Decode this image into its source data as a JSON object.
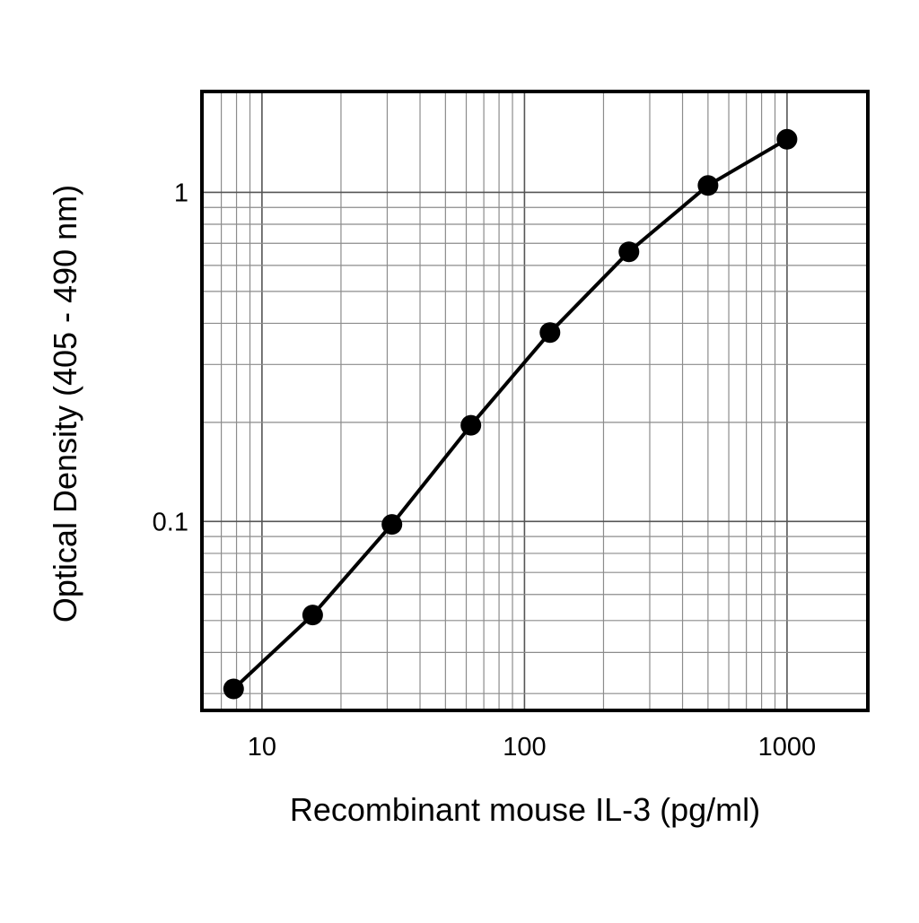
{
  "chart_data": {
    "type": "line",
    "title": "",
    "xlabel": "Recombinant mouse IL-3 (pg/ml)",
    "ylabel": "Optical Density (405 - 490 nm)",
    "x_scale": "log",
    "y_scale": "log",
    "xlim": [
      6,
      2000
    ],
    "ylim": [
      0.027,
      2.0
    ],
    "x_ticks": [
      {
        "value": 10,
        "label": "10"
      },
      {
        "value": 100,
        "label": "100"
      },
      {
        "value": 1000,
        "label": "1000"
      }
    ],
    "y_ticks": [
      {
        "value": 0.1,
        "label": "0.1"
      },
      {
        "value": 1,
        "label": "1"
      }
    ],
    "grid": true,
    "legend": "none",
    "series": [
      {
        "x": [
          7.8,
          15.6,
          31.25,
          62.5,
          125,
          250,
          500,
          1000
        ],
        "y": [
          0.031,
          0.052,
          0.098,
          0.196,
          0.375,
          0.66,
          1.05,
          1.45
        ]
      }
    ],
    "colors": {
      "line": "#000000",
      "marker": "#000000",
      "grid": "#8c8c8c",
      "frame": "#000000"
    }
  }
}
